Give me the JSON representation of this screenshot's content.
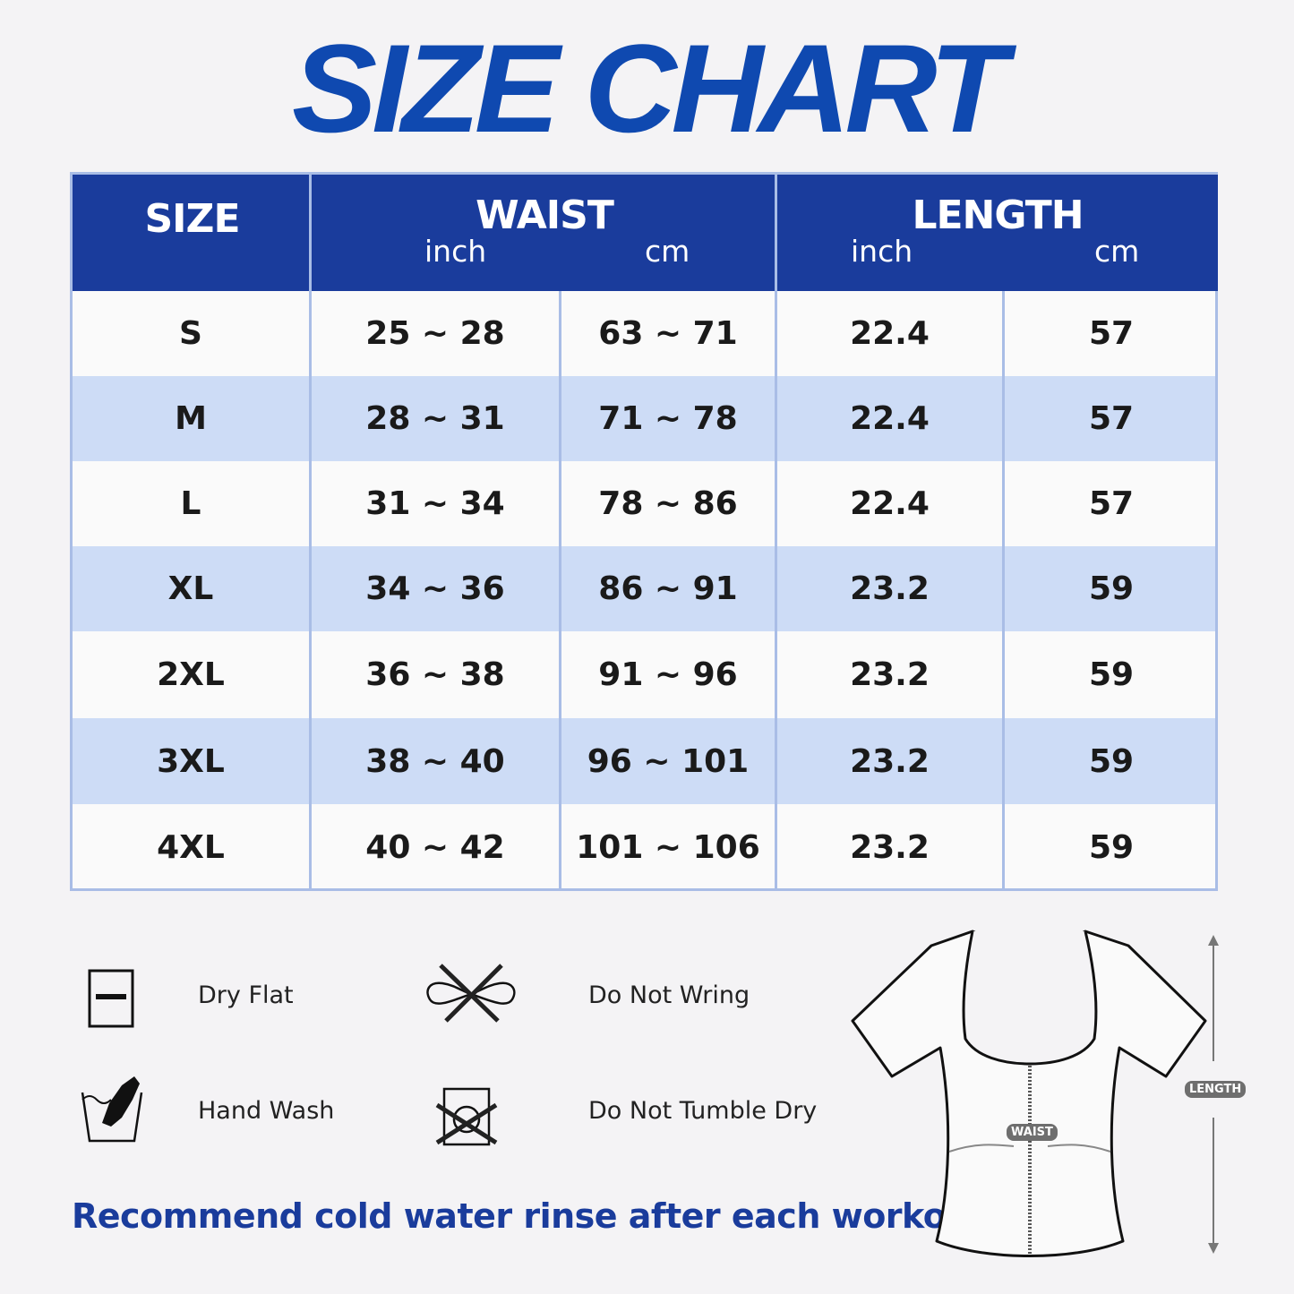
{
  "title": "SIZE CHART",
  "table": {
    "headers": {
      "size": "SIZE",
      "waist": "WAIST",
      "length": "LENGTH",
      "inch": "inch",
      "cm": "cm"
    },
    "rows": [
      {
        "size": "S",
        "waist_inch": "25 ~ 28",
        "waist_cm": "63 ~ 71",
        "length_inch": "22.4",
        "length_cm": "57"
      },
      {
        "size": "M",
        "waist_inch": "28 ~ 31",
        "waist_cm": "71 ~ 78",
        "length_inch": "22.4",
        "length_cm": "57"
      },
      {
        "size": "L",
        "waist_inch": "31 ~ 34",
        "waist_cm": "78 ~ 86",
        "length_inch": "22.4",
        "length_cm": "57"
      },
      {
        "size": "XL",
        "waist_inch": "34 ~ 36",
        "waist_cm": "86 ~ 91",
        "length_inch": "23.2",
        "length_cm": "59"
      },
      {
        "size": "2XL",
        "waist_inch": "36 ~ 38",
        "waist_cm": "91 ~ 96",
        "length_inch": "23.2",
        "length_cm": "59"
      },
      {
        "size": "3XL",
        "waist_inch": "38 ~ 40",
        "waist_cm": "96 ~ 101",
        "length_inch": "23.2",
        "length_cm": "59"
      },
      {
        "size": "4XL",
        "waist_inch": "40 ~ 42",
        "waist_cm": "101 ~ 106",
        "length_inch": "23.2",
        "length_cm": "59"
      }
    ]
  },
  "care": [
    {
      "label": "Dry Flat",
      "icon": "dry-flat-icon"
    },
    {
      "label": "Do Not Wring",
      "icon": "do-not-wring-icon"
    },
    {
      "label": "Hand Wash",
      "icon": "hand-wash-icon"
    },
    {
      "label": "Do Not Tumble Dry",
      "icon": "do-not-tumble-dry-icon"
    }
  ],
  "note": "Recommend cold water rinse after each workout.",
  "diagram": {
    "waist_label": "WAIST",
    "length_label": "LENGTH"
  },
  "colors": {
    "header": "#1a3c9c",
    "title": "#0f49b0",
    "alt_row": "#cddcf6",
    "border": "#a9bde6"
  }
}
